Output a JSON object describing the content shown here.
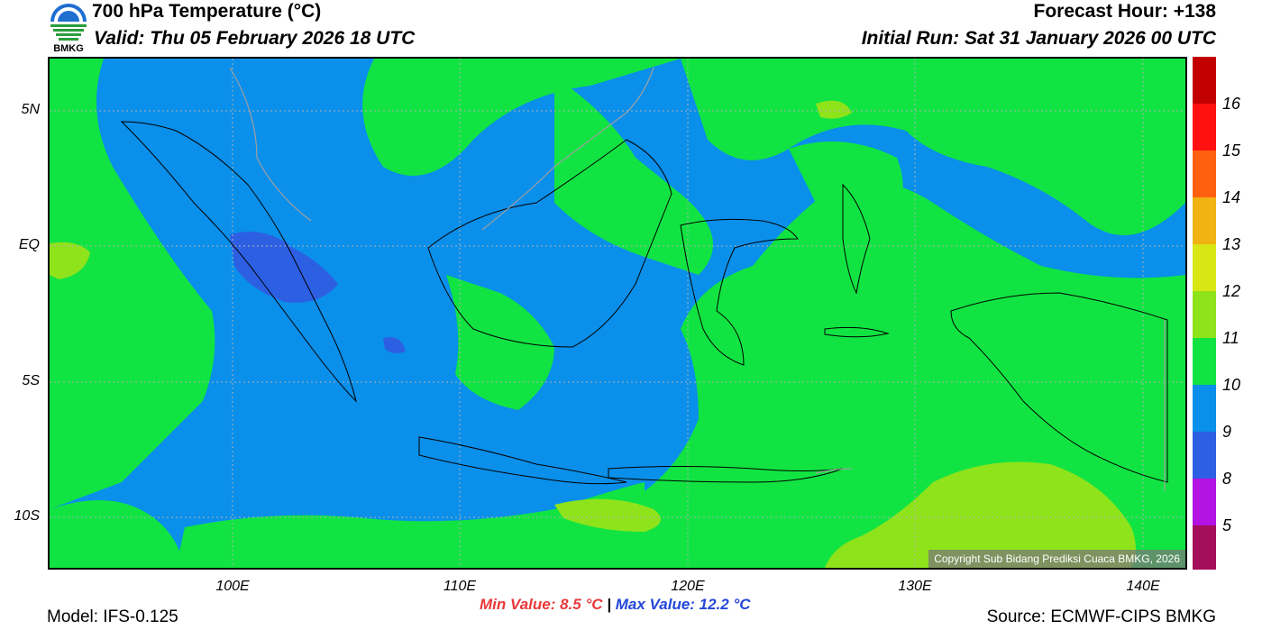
{
  "header": {
    "title": "700 hPa Temperature (°C)",
    "valid": "Valid: Thu 05 February 2026 18 UTC",
    "forecast_hour": "Forecast Hour: +138",
    "initial_run": "Initial Run: Sat 31 January 2026 00 UTC"
  },
  "logo": {
    "text": "BMKG",
    "icon": "bmkg-logo"
  },
  "map": {
    "lat_labels": [
      "5N",
      "EQ",
      "5S",
      "10S"
    ],
    "lon_labels": [
      "100E",
      "110E",
      "120E",
      "130E",
      "140E"
    ],
    "copyright": "Copyright Sub Bidang Prediksi Cuaca BMKG, 2026",
    "colors": {
      "blue": "#0a8fea",
      "green": "#11e442",
      "light_green": "#8fe31a",
      "dark_blue": "#2d5fe3",
      "outline": "#000000",
      "border_gray": "#a0a0a0"
    }
  },
  "colorbar": {
    "labels": [
      "16",
      "15",
      "14",
      "13",
      "12",
      "11",
      "10",
      "9",
      "8",
      "5"
    ],
    "colors": [
      "#c20000",
      "#ff1111",
      "#ff6010",
      "#f0b312",
      "#d8e713",
      "#8fe31a",
      "#11e442",
      "#0a8fea",
      "#2d5fe3",
      "#b313e3",
      "#a50e5a"
    ]
  },
  "stats": {
    "min": "Min Value: 8.5 °C",
    "separator": "|",
    "max": "Max Value: 12.2 °C"
  },
  "footer": {
    "model": "Model: IFS-0.125",
    "source": "Source: ECMWF-CIPS BMKG"
  }
}
